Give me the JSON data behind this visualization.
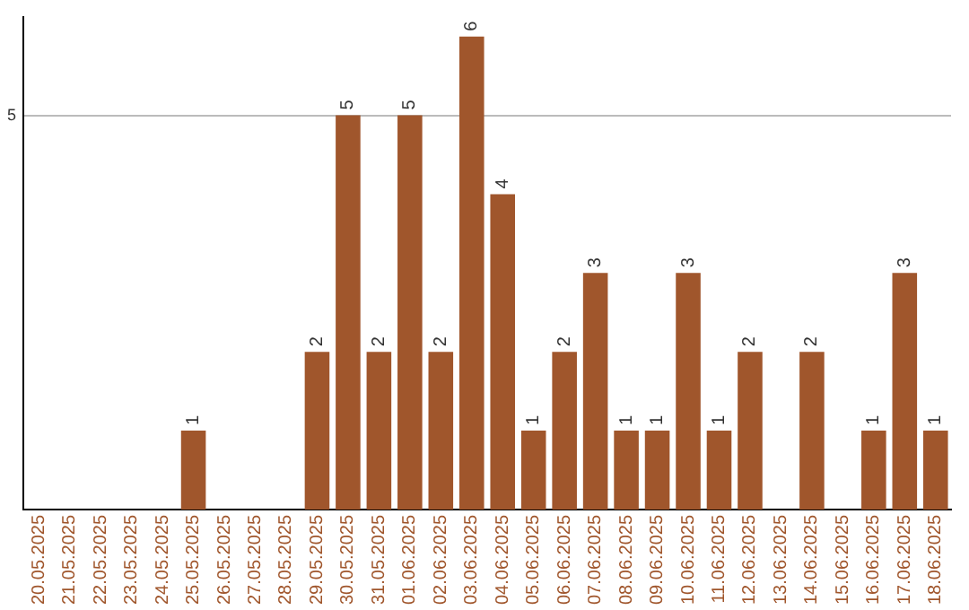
{
  "chart_data": {
    "type": "bar",
    "categories": [
      "20.05.2025",
      "21.05.2025",
      "22.05.2025",
      "23.05.2025",
      "24.05.2025",
      "25.05.2025",
      "26.05.2025",
      "27.05.2025",
      "28.05.2025",
      "29.05.2025",
      "30.05.2025",
      "31.05.2025",
      "01.06.2025",
      "02.06.2025",
      "03.06.2025",
      "04.06.2025",
      "05.06.2025",
      "06.06.2025",
      "07.06.2025",
      "08.06.2025",
      "09.06.2025",
      "10.06.2025",
      "11.06.2025",
      "12.06.2025",
      "13.06.2025",
      "14.06.2025",
      "15.06.2025",
      "16.06.2025",
      "17.06.2025",
      "18.06.2025"
    ],
    "values": [
      0,
      0,
      0,
      0,
      0,
      1,
      0,
      0,
      0,
      2,
      5,
      2,
      5,
      2,
      6,
      4,
      1,
      2,
      3,
      1,
      1,
      3,
      1,
      2,
      0,
      2,
      0,
      1,
      3,
      1
    ],
    "value_labels": [
      null,
      null,
      null,
      null,
      null,
      "1",
      null,
      null,
      null,
      "2",
      "5",
      "2",
      "5",
      "2",
      "6",
      "4",
      "1",
      "2",
      "3",
      "1",
      "1",
      "3",
      "1",
      "2",
      null,
      "2",
      null,
      "1",
      "3",
      "1"
    ],
    "color": "#a0562c",
    "ylim": [
      0,
      6.25
    ],
    "yticks": [
      5
    ],
    "grid": "y",
    "legend": false
  }
}
